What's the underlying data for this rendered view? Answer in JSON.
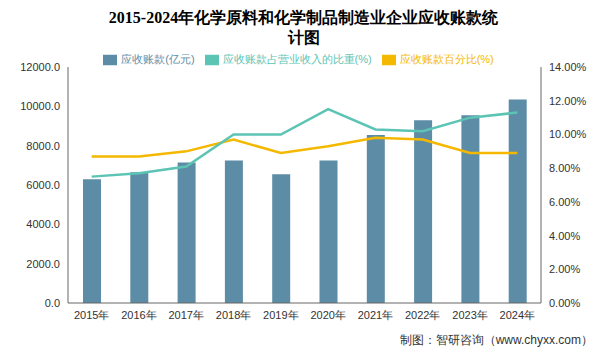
{
  "chart_data": {
    "type": "bar",
    "title": "2015-2024年化学原料和化学制品制造业企业应收账款统计图",
    "source": "制图：智研咨询（www.chyxx.com）",
    "categories": [
      "2015年",
      "2016年",
      "2017年",
      "2018年",
      "2019年",
      "2020年",
      "2021年",
      "2022年",
      "2023年",
      "2024年"
    ],
    "series": [
      {
        "name": "应收账款(亿元)",
        "type": "bar",
        "color": "#5d8ca6",
        "values": [
          6300,
          6650,
          7150,
          7250,
          6550,
          7250,
          8550,
          9300,
          9550,
          10350
        ]
      },
      {
        "name": "应收账款百分比(%)",
        "type": "line",
        "axis": "y2",
        "color": "#f5b800",
        "marker": "none",
        "values": [
          8.7,
          8.7,
          9.0,
          9.7,
          8.9,
          9.3,
          9.8,
          9.7,
          8.9,
          8.9
        ]
      },
      {
        "name": "应收账款占营业收入的比重(%)",
        "type": "line",
        "axis": "y2",
        "color": "#5cc4b4",
        "marker": "none",
        "values": [
          7.5,
          7.7,
          8.1,
          10.0,
          10.0,
          11.5,
          10.3,
          10.2,
          11.0,
          11.3
        ]
      }
    ],
    "ylim": [
      0,
      12000
    ],
    "yticks": [
      {
        "value": 0,
        "label": "0.0"
      },
      {
        "value": 2000,
        "label": "2000.0"
      },
      {
        "value": 4000,
        "label": "4000.0"
      },
      {
        "value": 6000,
        "label": "6000.0"
      },
      {
        "value": 8000,
        "label": "8000.0"
      },
      {
        "value": 10000,
        "label": "10000.0"
      },
      {
        "value": 12000,
        "label": "12000.0"
      }
    ],
    "y2lim": [
      0,
      14
    ],
    "y2ticks": [
      {
        "value": 0,
        "label": "0.00%"
      },
      {
        "value": 2,
        "label": "2.00%"
      },
      {
        "value": 4,
        "label": "4.00%"
      },
      {
        "value": 6,
        "label": "6.00%"
      },
      {
        "value": 8,
        "label": "8.00%"
      },
      {
        "value": 10,
        "label": "10.00%"
      },
      {
        "value": 12,
        "label": "12.00%"
      },
      {
        "value": 14,
        "label": "14.00%"
      }
    ],
    "grid": false,
    "legend": "top"
  }
}
